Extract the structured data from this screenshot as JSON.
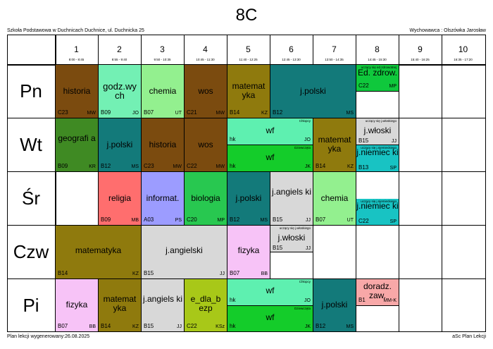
{
  "title": "8C",
  "school": "Szkoła Podstawowa w Duchnicach Duchnice, ul. Duchnicka 25",
  "homeroom": "Wychowawca : Olszówka Jarosław",
  "footer_left": "Plan lekcji wygenerowany:26.08.2025",
  "footer_right": "aSc Plan Lekcji",
  "periods": [
    {
      "num": "1",
      "time": "8:00 - 8:45"
    },
    {
      "num": "2",
      "time": "8:55 - 9:40"
    },
    {
      "num": "3",
      "time": "9:50 - 10:35"
    },
    {
      "num": "4",
      "time": "10:45 - 11:30"
    },
    {
      "num": "5",
      "time": "11:40 - 12:25"
    },
    {
      "num": "6",
      "time": "12:45 - 13:30"
    },
    {
      "num": "7",
      "time": "13:50 - 14:35"
    },
    {
      "num": "8",
      "time": "14:45 - 15:30"
    },
    {
      "num": "9",
      "time": "15:40 - 16:25"
    },
    {
      "num": "10",
      "time": "16:35 - 17:20"
    }
  ],
  "days": [
    "Pn",
    "Wt",
    "Śr",
    "Czw",
    "Pi"
  ],
  "groups": {
    "chlopcy": "Chłopcy",
    "dziewczeta": "Dziewczęta",
    "wloski": "uczący się j.włoskiego",
    "niemiecki": "uczący się j.niemieckiego",
    "ed_zdrow": "uczący się ed.zdrowotnej"
  },
  "lessons": {
    "pn": [
      {
        "subject": "historia",
        "room": "C23",
        "teacher": "MW"
      },
      {
        "subject": "godz.wychowawcza",
        "display": "godz.wy ch",
        "room": "B09",
        "teacher": "JO"
      },
      {
        "subject": "chemia",
        "room": "B07",
        "teacher": "UT"
      },
      {
        "subject": "wos",
        "room": "C21",
        "teacher": "MW"
      },
      {
        "subject": "matematyka",
        "display": "matemat yka",
        "room": "B14",
        "teacher": "KZ"
      },
      {
        "subject": "j.polski",
        "room": "B12",
        "teacher": "MS"
      },
      {
        "subject": "Ed. zdrow.",
        "display": "Ed. zdrow.",
        "room": "C22",
        "teacher": "MP"
      }
    ],
    "wt": [
      {
        "subject": "geografia",
        "display": "geografi a",
        "room": "B09",
        "teacher": "KR"
      },
      {
        "subject": "j.polski",
        "room": "B12",
        "teacher": "MS"
      },
      {
        "subject": "historia",
        "room": "C23",
        "teacher": "MW"
      },
      {
        "subject": "wos",
        "room": "C22",
        "teacher": "MW"
      },
      {
        "subject": "wf",
        "room": "hk",
        "teacher": "JO"
      },
      {
        "subject": "wf",
        "room": "hk",
        "teacher": "JK"
      },
      {
        "subject": "matematyka",
        "display": "matemat yka",
        "room": "B14",
        "teacher": "KZ"
      },
      {
        "subject": "j.włoski",
        "room": "B15",
        "teacher": "JJ"
      },
      {
        "subject": "j.niemiecki",
        "display": "j.niemiec ki",
        "room": "B13",
        "teacher": "SP"
      }
    ],
    "sr": [
      {
        "subject": "religia",
        "room": "B09",
        "teacher": "MB"
      },
      {
        "subject": "informat.",
        "room": "A03",
        "teacher": "PS"
      },
      {
        "subject": "biologia",
        "room": "C20",
        "teacher": "MP"
      },
      {
        "subject": "j.polski",
        "room": "B12",
        "teacher": "MS"
      },
      {
        "subject": "j.angielski",
        "display": "j.angiels ki",
        "room": "B15",
        "teacher": "JJ"
      },
      {
        "subject": "chemia",
        "room": "B07",
        "teacher": "UT"
      },
      {
        "subject": "j.niemiecki",
        "display": "j.niemiec ki",
        "room": "C22",
        "teacher": "SP"
      }
    ],
    "czw": [
      {
        "subject": "matematyka",
        "room": "B14",
        "teacher": "KZ"
      },
      {
        "subject": "j.angielski",
        "room": "B15",
        "teacher": "JJ"
      },
      {
        "subject": "fizyka",
        "room": "B07",
        "teacher": "BB"
      },
      {
        "subject": "j.włoski",
        "room": "B15",
        "teacher": "JJ"
      }
    ],
    "pi": [
      {
        "subject": "fizyka",
        "room": "B07",
        "teacher": "BB"
      },
      {
        "subject": "matematyka",
        "display": "matemat yka",
        "room": "B14",
        "teacher": "KZ"
      },
      {
        "subject": "j.angielski",
        "display": "j.angiels ki",
        "room": "B15",
        "teacher": "JJ"
      },
      {
        "subject": "e_dla_bezp",
        "display": "e_dla_b ezp",
        "room": "C22",
        "teacher": "KSz"
      },
      {
        "subject": "wf",
        "room": "hk",
        "teacher": "JO"
      },
      {
        "subject": "wf",
        "room": "hk",
        "teacher": "JK"
      },
      {
        "subject": "j.polski",
        "room": "B12",
        "teacher": "MS"
      },
      {
        "subject": "doradz. zaw.",
        "display": "doradz. zaw.",
        "room": "B1",
        "teacher": "MM-K"
      }
    ]
  }
}
